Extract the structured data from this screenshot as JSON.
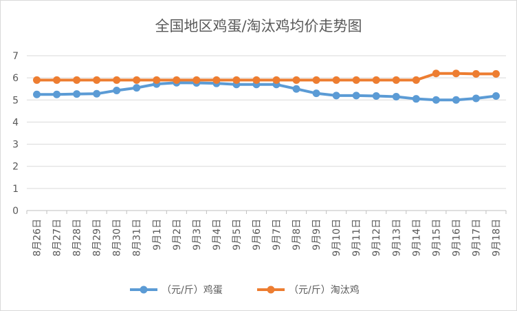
{
  "chart_data": {
    "type": "line",
    "title": "全国地区鸡蛋/淘汰鸡均价走势图",
    "xlabel": "",
    "ylabel": "",
    "ylim": [
      0,
      7
    ],
    "yticks": [
      0,
      1,
      2,
      3,
      4,
      5,
      6,
      7
    ],
    "grid": true,
    "legend_position": "bottom",
    "categories": [
      "8月26日",
      "8月27日",
      "8月28日",
      "8月29日",
      "8月30日",
      "8月31日",
      "9月1日",
      "9月2日",
      "9月3日",
      "9月4日",
      "9月5日",
      "9月6日",
      "9月7日",
      "9月8日",
      "9月9日",
      "9月10日",
      "9月11日",
      "9月12日",
      "9月13日",
      "9月14日",
      "9月15日",
      "9月16日",
      "9月17日",
      "9月18日"
    ],
    "series": [
      {
        "name": "（元/斤）鸡蛋",
        "color": "#5b9bd5",
        "values": [
          5.25,
          5.25,
          5.27,
          5.28,
          5.43,
          5.55,
          5.72,
          5.78,
          5.77,
          5.75,
          5.7,
          5.7,
          5.7,
          5.5,
          5.3,
          5.2,
          5.2,
          5.18,
          5.15,
          5.05,
          5.0,
          5.0,
          5.07,
          5.18
        ]
      },
      {
        "name": "（元/斤）淘汰鸡",
        "color": "#ed7d31",
        "values": [
          5.9,
          5.9,
          5.9,
          5.9,
          5.9,
          5.9,
          5.9,
          5.9,
          5.9,
          5.9,
          5.9,
          5.9,
          5.9,
          5.9,
          5.9,
          5.9,
          5.9,
          5.9,
          5.9,
          5.9,
          6.2,
          6.2,
          6.18,
          6.18
        ]
      }
    ]
  }
}
